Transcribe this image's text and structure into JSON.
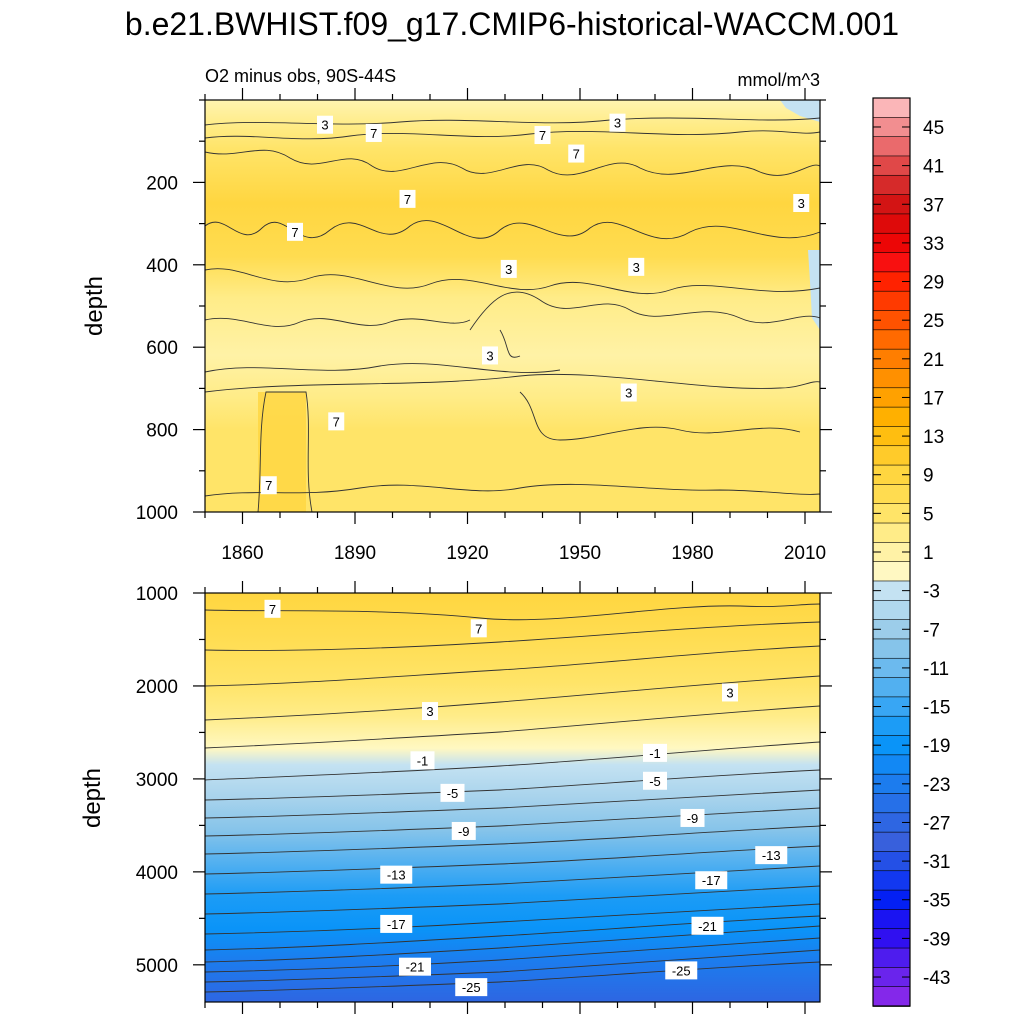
{
  "figure": {
    "title": "b.e21.BWHIST.f09_g17.CMIP6-historical-WACCM.001",
    "subtitle_left": "O2 minus obs, 90S-44S",
    "subtitle_right": "mmol/m^3"
  },
  "chart_data": [
    {
      "type": "heatmap",
      "panel": "upper",
      "title": "O2 minus obs, 90S-44S",
      "units": "mmol/m^3",
      "xlabel": "",
      "ylabel": "depth",
      "xlim": [
        1850,
        2014
      ],
      "ylim": [
        1000,
        0
      ],
      "xticks": [
        1860,
        1890,
        1920,
        1950,
        1980,
        2010
      ],
      "xtick_labels": [
        "1860",
        "1890",
        "1920",
        "1950",
        "1980",
        "2010"
      ],
      "yticks": [
        200,
        400,
        600,
        800,
        1000
      ],
      "ytick_labels": [
        "200",
        "400",
        "600",
        "800",
        "1000"
      ],
      "bands": [
        {
          "depth_top": 0,
          "depth_bottom": 80,
          "value": 3
        },
        {
          "depth_top": 80,
          "depth_bottom": 280,
          "value": 8
        },
        {
          "depth_top": 280,
          "depth_bottom": 420,
          "value": 6
        },
        {
          "depth_top": 420,
          "depth_bottom": 700,
          "value": 3
        },
        {
          "depth_top": 700,
          "depth_bottom": 1000,
          "value": 6
        }
      ],
      "contour_labels": [
        {
          "text": "3",
          "x": 1882,
          "depth": 60
        },
        {
          "text": "7",
          "x": 1895,
          "depth": 80
        },
        {
          "text": "7",
          "x": 1940,
          "depth": 85
        },
        {
          "text": "3",
          "x": 1960,
          "depth": 55
        },
        {
          "text": "7",
          "x": 1949,
          "depth": 130
        },
        {
          "text": "7",
          "x": 1904,
          "depth": 240
        },
        {
          "text": "3",
          "x": 2009,
          "depth": 250
        },
        {
          "text": "7",
          "x": 1874,
          "depth": 320
        },
        {
          "text": "3",
          "x": 1931,
          "depth": 410
        },
        {
          "text": "3",
          "x": 1965,
          "depth": 405
        },
        {
          "text": "3",
          "x": 1926,
          "depth": 620
        },
        {
          "text": "3",
          "x": 1963,
          "depth": 710
        },
        {
          "text": "7",
          "x": 1885,
          "depth": 780
        },
        {
          "text": "7",
          "x": 1867,
          "depth": 935
        }
      ]
    },
    {
      "type": "heatmap",
      "panel": "lower",
      "xlabel": "",
      "ylabel": "depth",
      "xlim": [
        1850,
        2014
      ],
      "ylim": [
        5400,
        1000
      ],
      "yticks": [
        1000,
        2000,
        3000,
        4000,
        5000
      ],
      "ytick_labels": [
        "1000",
        "2000",
        "3000",
        "4000",
        "5000"
      ],
      "contour_labels": [
        {
          "text": "7",
          "x": 1868,
          "depth": 1170
        },
        {
          "text": "7",
          "x": 1923,
          "depth": 1380
        },
        {
          "text": "3",
          "x": 1910,
          "depth": 2270
        },
        {
          "text": "3",
          "x": 1990,
          "depth": 2070
        },
        {
          "text": "-1",
          "x": 1908,
          "depth": 2800
        },
        {
          "text": "-1",
          "x": 1970,
          "depth": 2720
        },
        {
          "text": "-5",
          "x": 1916,
          "depth": 3150
        },
        {
          "text": "-5",
          "x": 1970,
          "depth": 3020
        },
        {
          "text": "-9",
          "x": 1919,
          "depth": 3560
        },
        {
          "text": "-9",
          "x": 1980,
          "depth": 3420
        },
        {
          "text": "-13",
          "x": 1901,
          "depth": 4030
        },
        {
          "text": "-13",
          "x": 2001,
          "depth": 3820
        },
        {
          "text": "-17",
          "x": 1901,
          "depth": 4560
        },
        {
          "text": "-17",
          "x": 1985,
          "depth": 4090
        },
        {
          "text": "-21",
          "x": 1906,
          "depth": 5020
        },
        {
          "text": "-21",
          "x": 1984,
          "depth": 4580
        },
        {
          "text": "-25",
          "x": 1921,
          "depth": 5240
        },
        {
          "text": "-25",
          "x": 1977,
          "depth": 5060
        }
      ]
    }
  ],
  "colorbar": {
    "levels": [
      47,
      45,
      43,
      41,
      39,
      37,
      35,
      33,
      31,
      29,
      27,
      25,
      23,
      21,
      19,
      17,
      15,
      13,
      11,
      9,
      7,
      5,
      3,
      1,
      -1,
      -3,
      -5,
      -7,
      -9,
      -11,
      -13,
      -15,
      -17,
      -19,
      -21,
      -23,
      -25,
      -27,
      -29,
      -31,
      -33,
      -35,
      -37,
      -39,
      -41,
      -43,
      -45
    ],
    "colors": [
      "#fbb6b8",
      "#f28e90",
      "#ea6a6c",
      "#e04848",
      "#d62a2a",
      "#d31414",
      "#de0a0a",
      "#ec0606",
      "#f81010",
      "#ff2200",
      "#ff3a00",
      "#ff5200",
      "#ff6a00",
      "#ff7e00",
      "#ff9000",
      "#ffa100",
      "#ffb000",
      "#ffbe10",
      "#ffcb2a",
      "#ffd640",
      "#ffdc50",
      "#ffe468",
      "#ffec88",
      "#fff2a6",
      "#fff8c2",
      "#c4e2f2",
      "#b0d8ee",
      "#9ccdea",
      "#86c4ea",
      "#6cbaee",
      "#52b0f0",
      "#38a6f4",
      "#1c9cf6",
      "#0a94f8",
      "#1288f4",
      "#1c7cee",
      "#2670e8",
      "#2e66e2",
      "#3860dc",
      "#2450e6",
      "#1238f0",
      "#0420f4",
      "#1a14f2",
      "#3010f0",
      "#4e1cee",
      "#6a24ec",
      "#8428ea"
    ],
    "labels": [
      "45",
      "41",
      "37",
      "33",
      "29",
      "25",
      "21",
      "17",
      "13",
      "9",
      "5",
      "1",
      "-3",
      "-7",
      "-11",
      "-15",
      "-19",
      "-23",
      "-27",
      "-31",
      "-35",
      "-39",
      "-43"
    ]
  }
}
